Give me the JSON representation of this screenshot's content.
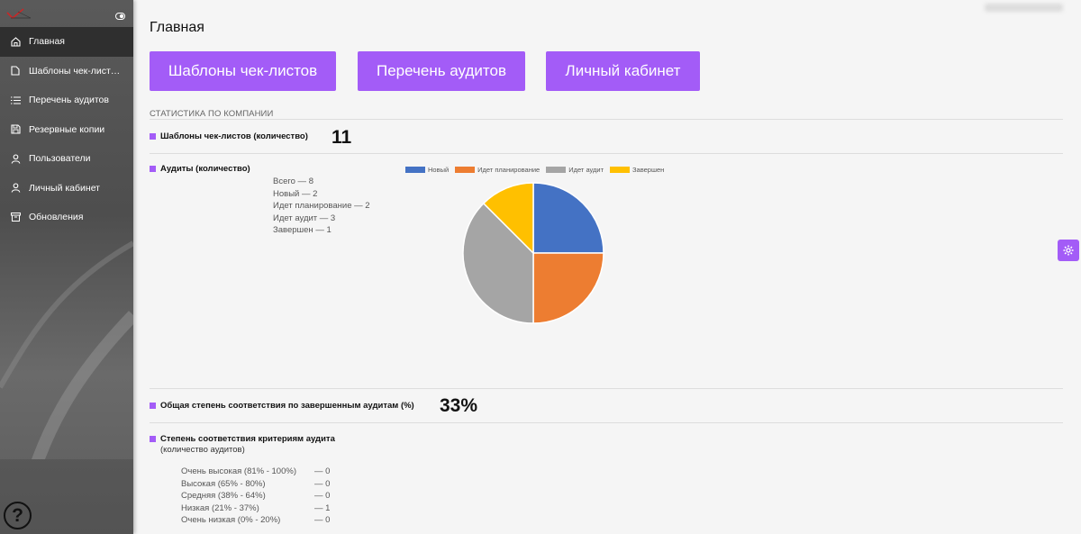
{
  "sidebar": {
    "items": [
      {
        "label": "Главная",
        "icon": "home-icon",
        "active": true
      },
      {
        "label": "Шаблоны чек-лист…",
        "icon": "document-icon",
        "active": false
      },
      {
        "label": "Перечень аудитов",
        "icon": "list-icon",
        "active": false
      },
      {
        "label": "Резервные копии",
        "icon": "save-icon",
        "active": false
      },
      {
        "label": "Пользователи",
        "icon": "user-icon",
        "active": false
      },
      {
        "label": "Личный кабинет",
        "icon": "user-icon",
        "active": false
      },
      {
        "label": "Обновления",
        "icon": "archive-icon",
        "active": false
      }
    ],
    "help_label": "?"
  },
  "main": {
    "title": "Главная",
    "buttons": {
      "templates": "Шаблоны чек-листов",
      "audits": "Перечень аудитов",
      "cabinet": "Личный кабинет"
    },
    "section_title": "СТАТИСТИКА ПО КОМПАНИИ",
    "templates_stat": {
      "label": "Шаблоны чек-листов (количество)",
      "value": "11"
    },
    "audits_stat": {
      "label": "Аудиты (количество)",
      "lines": [
        "Всего — 8",
        "Новый — 2",
        "Идет планирование — 2",
        "Идет аудит — 3",
        "Завершен — 1"
      ]
    },
    "compliance_stat": {
      "label": "Общая степень соответствия по завершенным аудитам (%)",
      "value": "33%"
    },
    "criteria": {
      "label": "Степень соответствия критериям аудита",
      "sublabel": "(количество аудитов)",
      "rows": [
        {
          "name": "Очень высокая (81% - 100%)",
          "value": "— 0"
        },
        {
          "name": "Высокая (65% - 80%)",
          "value": "— 0"
        },
        {
          "name": "Средняя (38% - 64%)",
          "value": "— 0"
        },
        {
          "name": "Низкая (21% - 37%)",
          "value": "— 1"
        },
        {
          "name": "Очень низкая (0% - 20%)",
          "value": "— 0"
        }
      ]
    }
  },
  "chart_data": {
    "type": "pie",
    "categories": [
      "Новый",
      "Идет планирование",
      "Идет аудит",
      "Завершен"
    ],
    "values": [
      2,
      2,
      3,
      1
    ],
    "colors": [
      "#4472c4",
      "#ed7d31",
      "#a5a5a5",
      "#ffc000"
    ],
    "legend": "top"
  },
  "colors": {
    "accent": "#a35cf7",
    "sidebar_active": "#2f2f2f"
  }
}
